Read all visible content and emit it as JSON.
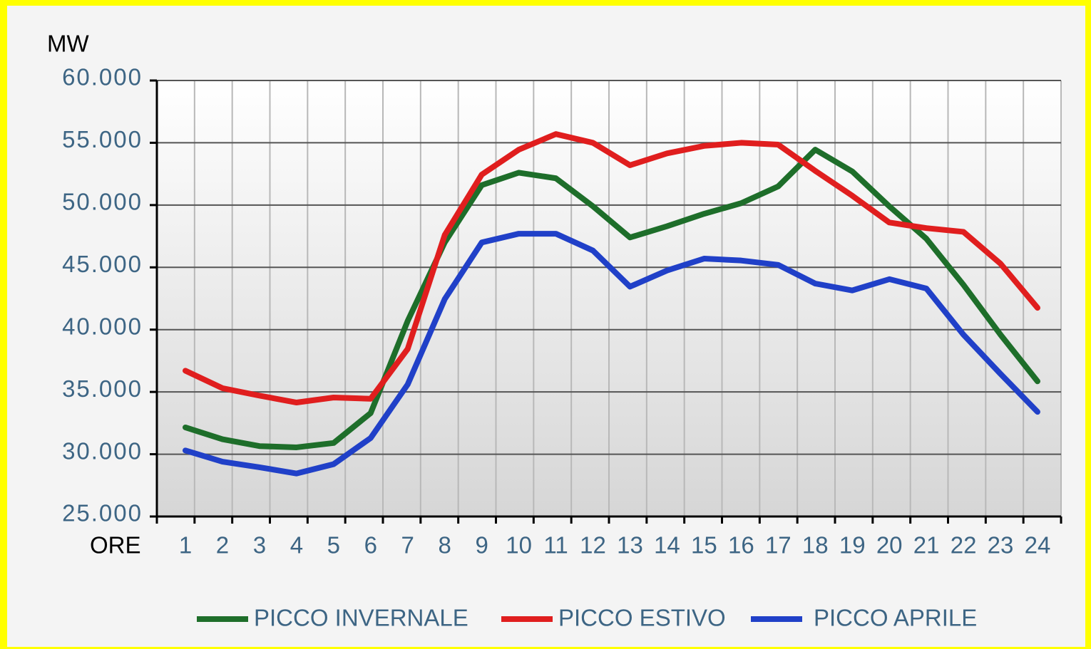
{
  "chart_data": {
    "type": "line",
    "y_label": "MW",
    "x_label": "ORE",
    "categories": [
      "1",
      "2",
      "3",
      "4",
      "5",
      "6",
      "7",
      "8",
      "9",
      "10",
      "11",
      "12",
      "13",
      "14",
      "15",
      "16",
      "17",
      "18",
      "19",
      "20",
      "21",
      "22",
      "23",
      "24"
    ],
    "series": [
      {
        "name": "PICCO INVERNALE",
        "color": "#1e6e2a",
        "values": [
          32150,
          31200,
          30650,
          30550,
          30900,
          33300,
          40700,
          47000,
          51600,
          52600,
          52150,
          49900,
          47400,
          48300,
          49300,
          50150,
          51500,
          54450,
          52700,
          49900,
          47300,
          43600,
          39600,
          35850
        ]
      },
      {
        "name": "PICCO ESTIVO",
        "color": "#e01e1e",
        "values": [
          36700,
          35300,
          34700,
          34150,
          34550,
          34450,
          38450,
          47600,
          52450,
          54450,
          55700,
          55000,
          53200,
          54150,
          54750,
          55000,
          54850,
          52750,
          50750,
          48600,
          48150,
          47850,
          45300,
          41750
        ]
      },
      {
        "name": "PICCO APRILE",
        "color": "#2040c8",
        "values": [
          30300,
          29400,
          28950,
          28450,
          29200,
          31300,
          35600,
          42450,
          47000,
          47700,
          47700,
          46350,
          43450,
          44750,
          45700,
          45550,
          45200,
          43700,
          43150,
          44050,
          43300,
          39600,
          36450,
          33400
        ]
      }
    ],
    "ylim": [
      25000,
      60000
    ],
    "yticks": [
      {
        "value": 25000,
        "label": "25.000"
      },
      {
        "value": 30000,
        "label": "30.000"
      },
      {
        "value": 35000,
        "label": "35.000"
      },
      {
        "value": 40000,
        "label": "40.000"
      },
      {
        "value": 45000,
        "label": "45.000"
      },
      {
        "value": 50000,
        "label": "50.000"
      },
      {
        "value": 55000,
        "label": "55.000"
      },
      {
        "value": 60000,
        "label": "60.000"
      }
    ],
    "grid": true,
    "legend": "bottom"
  }
}
